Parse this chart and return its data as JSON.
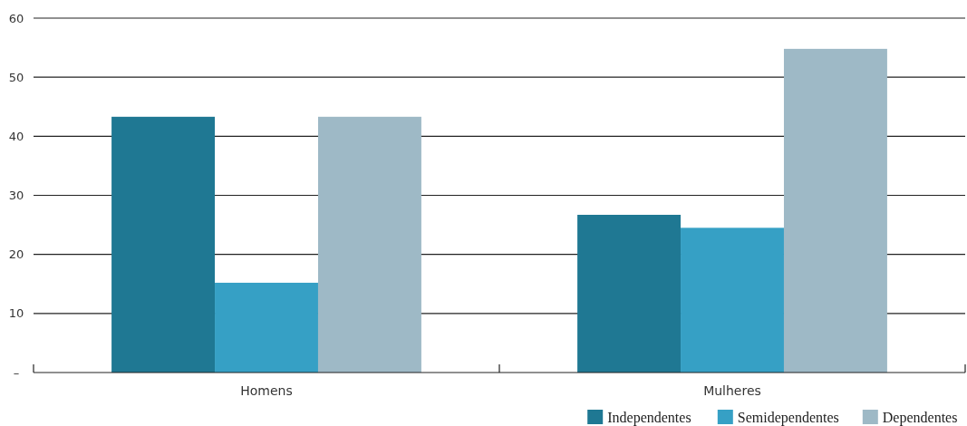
{
  "chart_data": {
    "type": "bar",
    "categories": [
      "Homens",
      "Mulheres"
    ],
    "series": [
      {
        "name": "Independentes",
        "color": "#1f7893",
        "values": [
          43.3,
          26.7
        ]
      },
      {
        "name": "Semidependentes",
        "color": "#36a0c5",
        "values": [
          15.2,
          24.5
        ]
      },
      {
        "name": "Dependentes",
        "color": "#9eb9c6",
        "values": [
          43.3,
          54.8
        ]
      }
    ],
    "ylim": [
      0,
      60
    ],
    "yticks": [
      {
        "value": 0,
        "label": "–"
      },
      10,
      20,
      30,
      40,
      50,
      60
    ],
    "grid": "y",
    "legend": "bottom right"
  }
}
